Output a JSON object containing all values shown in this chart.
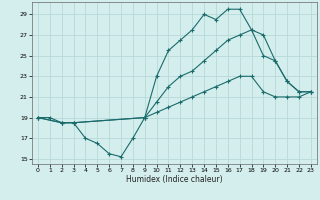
{
  "xlabel": "Humidex (Indice chaleur)",
  "bg_color": "#d4eeed",
  "line_color": "#1a6b6b",
  "grid_color": "#b8d8d8",
  "xlim": [
    -0.5,
    23.5
  ],
  "ylim": [
    14.5,
    30.2
  ],
  "xticks": [
    0,
    1,
    2,
    3,
    4,
    5,
    6,
    7,
    8,
    9,
    10,
    11,
    12,
    13,
    14,
    15,
    16,
    17,
    18,
    19,
    20,
    21,
    22,
    23
  ],
  "yticks": [
    15,
    17,
    19,
    21,
    23,
    25,
    27,
    29
  ],
  "line1_x": [
    0,
    1,
    2,
    3,
    4,
    5,
    6,
    7,
    8,
    9,
    10,
    11,
    12,
    13,
    14,
    15,
    16,
    17,
    18,
    19,
    20,
    21,
    22,
    23
  ],
  "line1_y": [
    19,
    19,
    18.5,
    18.5,
    17,
    16.5,
    15.5,
    15.2,
    17,
    19,
    23,
    25.5,
    26.5,
    27.5,
    29,
    28.5,
    29.5,
    29.5,
    27.5,
    25,
    24.5,
    22.5,
    21.5,
    21.5
  ],
  "line2_x": [
    0,
    2,
    3,
    9,
    10,
    11,
    12,
    13,
    14,
    15,
    16,
    17,
    18,
    19,
    20,
    21,
    22,
    23
  ],
  "line2_y": [
    19,
    18.5,
    18.5,
    19,
    20.5,
    22,
    23,
    23.5,
    24.5,
    25.5,
    26.5,
    27,
    27.5,
    27,
    24.5,
    22.5,
    21.5,
    21.5
  ],
  "line3_x": [
    0,
    2,
    3,
    9,
    10,
    11,
    12,
    13,
    14,
    15,
    16,
    17,
    18,
    19,
    20,
    21,
    22,
    23
  ],
  "line3_y": [
    19,
    18.5,
    18.5,
    19,
    19.5,
    20,
    20.5,
    21,
    21.5,
    22,
    22.5,
    23,
    23,
    21.5,
    21,
    21,
    21,
    21.5
  ]
}
